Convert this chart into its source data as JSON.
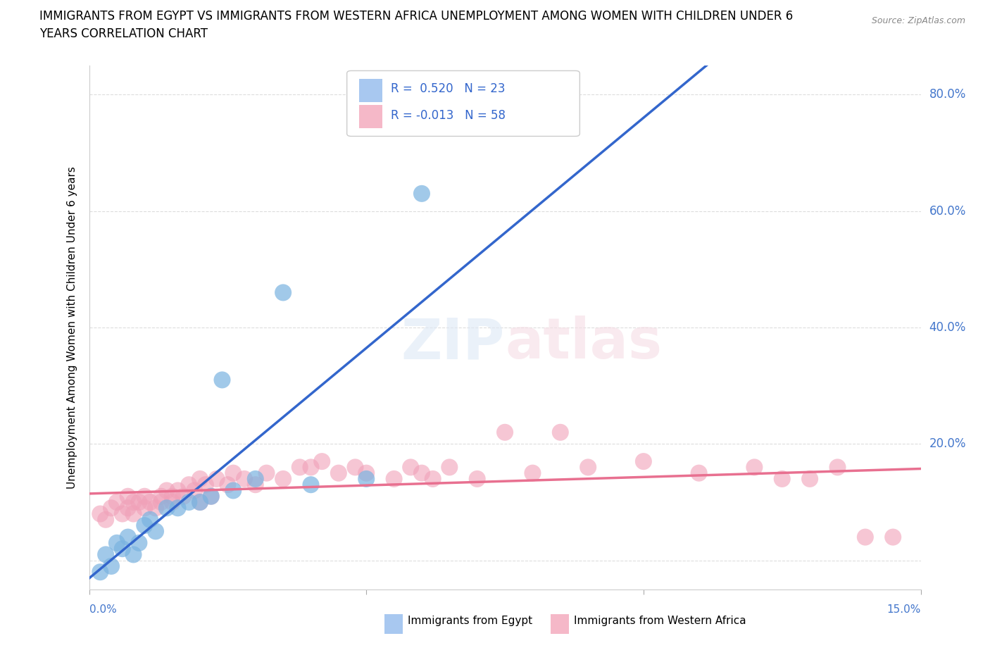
{
  "title_line1": "IMMIGRANTS FROM EGYPT VS IMMIGRANTS FROM WESTERN AFRICA UNEMPLOYMENT AMONG WOMEN WITH CHILDREN UNDER 6",
  "title_line2": "YEARS CORRELATION CHART",
  "source": "Source: ZipAtlas.com",
  "ylabel": "Unemployment Among Women with Children Under 6 years",
  "ytick_vals": [
    0.0,
    0.2,
    0.4,
    0.6,
    0.8
  ],
  "xlim": [
    0.0,
    0.15
  ],
  "ylim": [
    -0.05,
    0.85
  ],
  "legend_color1": "#a8c8f0",
  "legend_color2": "#f5b8c8",
  "color_egypt": "#7ab3e0",
  "color_west_africa": "#f0a0b8",
  "line_color_egypt": "#3366cc",
  "line_color_west_africa": "#e87090",
  "egypt_x": [
    0.002,
    0.003,
    0.004,
    0.005,
    0.006,
    0.007,
    0.008,
    0.009,
    0.01,
    0.011,
    0.012,
    0.014,
    0.016,
    0.018,
    0.02,
    0.022,
    0.024,
    0.026,
    0.03,
    0.035,
    0.04,
    0.05,
    0.06
  ],
  "egypt_y": [
    -0.02,
    0.01,
    -0.01,
    0.03,
    0.02,
    0.04,
    0.01,
    0.03,
    0.06,
    0.07,
    0.05,
    0.09,
    0.09,
    0.1,
    0.1,
    0.11,
    0.31,
    0.12,
    0.14,
    0.46,
    0.13,
    0.14,
    0.63
  ],
  "west_africa_x": [
    0.002,
    0.003,
    0.004,
    0.005,
    0.006,
    0.007,
    0.007,
    0.008,
    0.008,
    0.009,
    0.01,
    0.01,
    0.011,
    0.012,
    0.013,
    0.013,
    0.014,
    0.015,
    0.015,
    0.016,
    0.017,
    0.018,
    0.019,
    0.02,
    0.02,
    0.021,
    0.022,
    0.023,
    0.025,
    0.026,
    0.028,
    0.03,
    0.032,
    0.035,
    0.038,
    0.04,
    0.042,
    0.045,
    0.048,
    0.05,
    0.055,
    0.058,
    0.06,
    0.062,
    0.065,
    0.07,
    0.075,
    0.08,
    0.085,
    0.09,
    0.1,
    0.11,
    0.12,
    0.125,
    0.13,
    0.135,
    0.14,
    0.145
  ],
  "west_africa_y": [
    0.08,
    0.07,
    0.09,
    0.1,
    0.08,
    0.11,
    0.09,
    0.1,
    0.08,
    0.1,
    0.09,
    0.11,
    0.1,
    0.09,
    0.11,
    0.1,
    0.12,
    0.1,
    0.11,
    0.12,
    0.11,
    0.13,
    0.12,
    0.1,
    0.14,
    0.13,
    0.11,
    0.14,
    0.13,
    0.15,
    0.14,
    0.13,
    0.15,
    0.14,
    0.16,
    0.16,
    0.17,
    0.15,
    0.16,
    0.15,
    0.14,
    0.16,
    0.15,
    0.14,
    0.16,
    0.14,
    0.22,
    0.15,
    0.22,
    0.16,
    0.17,
    0.15,
    0.16,
    0.14,
    0.14,
    0.16,
    0.04,
    0.04
  ],
  "background_color": "#ffffff",
  "grid_color": "#cccccc"
}
